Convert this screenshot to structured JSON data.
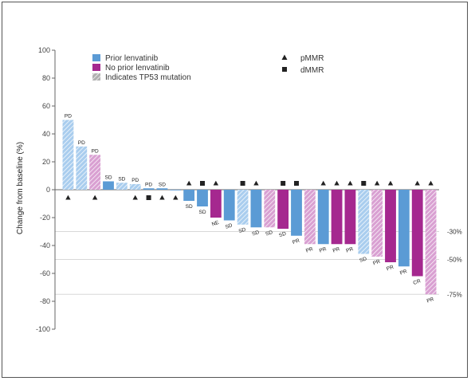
{
  "chart_data": {
    "type": "bar",
    "ylabel": "Change from baseline (%)",
    "ylim": [
      -100,
      100
    ],
    "yticks": [
      100,
      80,
      60,
      40,
      20,
      0,
      -20,
      -40,
      -60,
      -80,
      -100
    ],
    "reference_lines": [
      {
        "value": -30,
        "label": "-30%"
      },
      {
        "value": -50,
        "label": "-50%"
      },
      {
        "value": -75,
        "label": "-75%"
      }
    ],
    "legend": [
      {
        "name": "Prior lenvatinib",
        "color": "#5b9bd5",
        "pattern": "solid"
      },
      {
        "name": "No prior lenvatinib",
        "color": "#a5288f",
        "pattern": "solid"
      },
      {
        "name": "Indicates TP53 mutation",
        "color": "#888888",
        "pattern": "hatched"
      }
    ],
    "marker_legend": [
      {
        "name": "pMMR",
        "symbol": "triangle"
      },
      {
        "name": "dMMR",
        "symbol": "square"
      }
    ],
    "colors": {
      "prior": "#5b9bd5",
      "prior_tp53": "#a9cdee",
      "noprior": "#a5288f",
      "noprior_tp53": "#d9a0d2"
    },
    "bars": [
      {
        "value": 50,
        "label": "PD",
        "group": "prior",
        "tp53": true,
        "marker": "triangle"
      },
      {
        "value": 31,
        "label": "PD",
        "group": "prior",
        "tp53": true,
        "marker": ""
      },
      {
        "value": 25,
        "label": "PD",
        "group": "noprior",
        "tp53": true,
        "marker": "triangle"
      },
      {
        "value": 6,
        "label": "SD",
        "group": "prior",
        "tp53": false,
        "marker": ""
      },
      {
        "value": 5,
        "label": "SD",
        "group": "prior",
        "tp53": true,
        "marker": ""
      },
      {
        "value": 4,
        "label": "PD",
        "group": "prior",
        "tp53": true,
        "marker": "triangle"
      },
      {
        "value": 1,
        "label": "PD",
        "group": "prior",
        "tp53": false,
        "marker": "square"
      },
      {
        "value": 1,
        "label": "SD",
        "group": "prior",
        "tp53": false,
        "marker": "triangle"
      },
      {
        "value": 0,
        "label": "",
        "group": "prior",
        "tp53": false,
        "marker": "triangle"
      },
      {
        "value": -8,
        "label": "SD",
        "group": "prior",
        "tp53": false,
        "marker": "triangle"
      },
      {
        "value": -12,
        "label": "SD",
        "group": "prior",
        "tp53": false,
        "marker": "square"
      },
      {
        "value": -20,
        "label": "NE",
        "group": "noprior",
        "tp53": false,
        "marker": "triangle"
      },
      {
        "value": -22,
        "label": "SD",
        "group": "prior",
        "tp53": false,
        "marker": ""
      },
      {
        "value": -25,
        "label": "SD",
        "group": "prior",
        "tp53": true,
        "marker": "square"
      },
      {
        "value": -27,
        "label": "SD",
        "group": "prior",
        "tp53": false,
        "marker": "triangle"
      },
      {
        "value": -27,
        "label": "SD",
        "group": "noprior",
        "tp53": true,
        "marker": ""
      },
      {
        "value": -28,
        "label": "SD",
        "group": "noprior",
        "tp53": false,
        "marker": "square"
      },
      {
        "value": -33,
        "label": "PR",
        "group": "prior",
        "tp53": false,
        "marker": "square"
      },
      {
        "value": -39,
        "label": "PR",
        "group": "noprior",
        "tp53": true,
        "marker": ""
      },
      {
        "value": -39,
        "label": "PR",
        "group": "prior",
        "tp53": false,
        "marker": "triangle"
      },
      {
        "value": -39,
        "label": "PR",
        "group": "noprior",
        "tp53": false,
        "marker": "triangle"
      },
      {
        "value": -39,
        "label": "PR",
        "group": "noprior",
        "tp53": false,
        "marker": "triangle"
      },
      {
        "value": -46,
        "label": "SD",
        "group": "prior",
        "tp53": true,
        "marker": "square"
      },
      {
        "value": -48,
        "label": "PR",
        "group": "noprior",
        "tp53": true,
        "marker": "triangle"
      },
      {
        "value": -52,
        "label": "PR",
        "group": "noprior",
        "tp53": false,
        "marker": "triangle"
      },
      {
        "value": -55,
        "label": "PR",
        "group": "prior",
        "tp53": false,
        "marker": ""
      },
      {
        "value": -62,
        "label": "CR",
        "group": "noprior",
        "tp53": false,
        "marker": "triangle"
      },
      {
        "value": -75,
        "label": "PR",
        "group": "noprior",
        "tp53": true,
        "marker": "triangle"
      }
    ]
  }
}
